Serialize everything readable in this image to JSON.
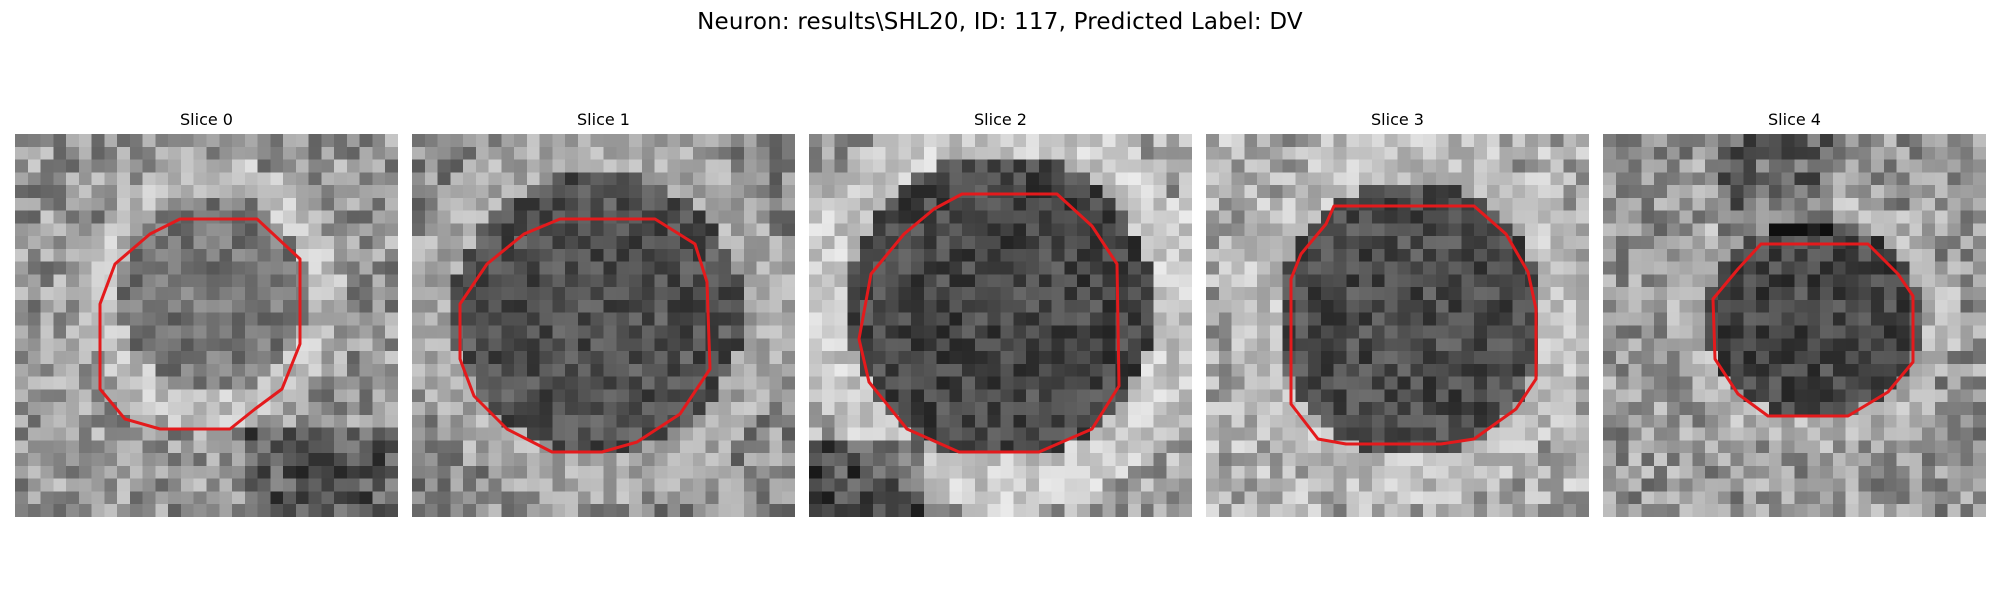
{
  "figure": {
    "title": "Neuron: results\\SHL20, ID: 117, Predicted Label: DV"
  },
  "slices": [
    {
      "title": "Slice 0"
    },
    {
      "title": "Slice 1"
    },
    {
      "title": "Slice 2"
    },
    {
      "title": "Slice 3"
    },
    {
      "title": "Slice 4"
    }
  ],
  "colors": {
    "roi_outline": "#e41a1c",
    "background": "#ffffff",
    "colormap": "gray"
  }
}
